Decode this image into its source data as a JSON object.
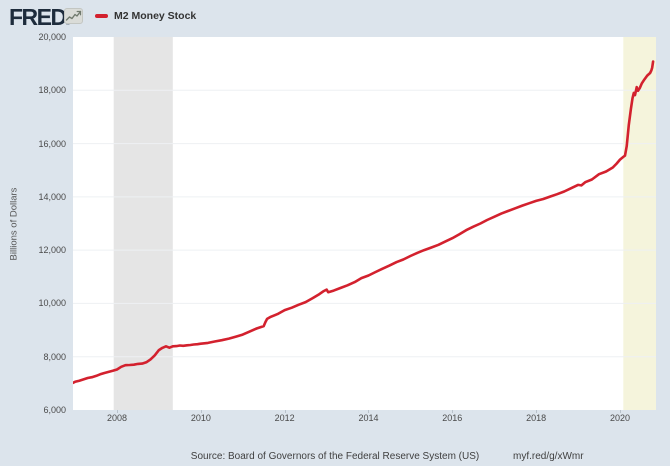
{
  "header": {
    "logo": "FRED",
    "registered": "®"
  },
  "legend": {
    "label": "M2 Money Stock",
    "color": "#d3212e"
  },
  "footer": {
    "source": "Source: Board of Governors of the Federal Reserve System (US)",
    "link": "myf.red/g/xWmr"
  },
  "colors": {
    "background": "#dce4ec",
    "plot_background": "#ffffff",
    "gridline": "#eef0f3",
    "recession_band": "#e5e5e5",
    "covid_band": "#f5f4dc",
    "line": "#d3212e",
    "text": "#4a4a4a",
    "logo": "#1e2c3c"
  },
  "chart_data": {
    "type": "line",
    "title": "M2 Money Stock",
    "xlabel": "",
    "ylabel": "Billions of Dollars",
    "xlim": [
      2006.95,
      2020.86
    ],
    "ylim": [
      6000,
      20000
    ],
    "grid": true,
    "legend_position": "top-left",
    "yticks": {
      "values": [
        6000,
        8000,
        10000,
        12000,
        14000,
        16000,
        18000,
        20000
      ],
      "labels": [
        "6,000",
        "8,000",
        "10,000",
        "12,000",
        "14,000",
        "16,000",
        "18,000",
        "20,000"
      ]
    },
    "xticks": {
      "values": [
        2008,
        2010,
        2012,
        2014,
        2016,
        2018,
        2020
      ],
      "labels": [
        "2008",
        "2010",
        "2012",
        "2014",
        "2016",
        "2018",
        "2020"
      ]
    },
    "bands": [
      {
        "name": "recession-2008-2009",
        "x0": 2007.92,
        "x1": 2009.33,
        "color": "#e5e5e5"
      },
      {
        "name": "recession-2020",
        "x0": 2020.08,
        "x1": 2020.86,
        "color": "#f5f4dc"
      }
    ],
    "series": [
      {
        "name": "M2 Money Stock",
        "color": "#d3212e",
        "units": "Billions of Dollars",
        "x": [
          2006.95,
          2007.0,
          2007.1,
          2007.2,
          2007.3,
          2007.4,
          2007.5,
          2007.6,
          2007.7,
          2007.8,
          2007.9,
          2008.0,
          2008.1,
          2008.2,
          2008.3,
          2008.4,
          2008.5,
          2008.6,
          2008.7,
          2008.8,
          2008.9,
          2009.0,
          2009.08,
          2009.17,
          2009.25,
          2009.33,
          2009.42,
          2009.5,
          2009.58,
          2009.67,
          2009.75,
          2009.83,
          2009.92,
          2010.0,
          2010.17,
          2010.33,
          2010.5,
          2010.67,
          2010.83,
          2011.0,
          2011.17,
          2011.33,
          2011.5,
          2011.54,
          2011.58,
          2011.67,
          2011.75,
          2011.83,
          2011.92,
          2012.0,
          2012.17,
          2012.33,
          2012.5,
          2012.67,
          2012.83,
          2012.92,
          2013.0,
          2013.04,
          2013.17,
          2013.33,
          2013.5,
          2013.67,
          2013.83,
          2014.0,
          2014.17,
          2014.33,
          2014.5,
          2014.67,
          2014.83,
          2015.0,
          2015.17,
          2015.33,
          2015.5,
          2015.67,
          2015.83,
          2016.0,
          2016.17,
          2016.33,
          2016.5,
          2016.67,
          2016.83,
          2017.0,
          2017.17,
          2017.33,
          2017.5,
          2017.67,
          2017.83,
          2018.0,
          2018.17,
          2018.33,
          2018.5,
          2018.67,
          2018.83,
          2019.0,
          2019.08,
          2019.17,
          2019.33,
          2019.5,
          2019.67,
          2019.83,
          2019.92,
          2020.0,
          2020.08,
          2020.12,
          2020.16,
          2020.21,
          2020.26,
          2020.3,
          2020.33,
          2020.36,
          2020.4,
          2020.43,
          2020.47,
          2020.52,
          2020.58,
          2020.65,
          2020.72,
          2020.75,
          2020.77,
          2020.79
        ],
        "y": [
          7020,
          7060,
          7100,
          7150,
          7200,
          7230,
          7280,
          7340,
          7390,
          7430,
          7470,
          7520,
          7620,
          7680,
          7690,
          7700,
          7730,
          7740,
          7790,
          7900,
          8050,
          8250,
          8330,
          8390,
          8340,
          8390,
          8400,
          8420,
          8410,
          8430,
          8440,
          8460,
          8470,
          8490,
          8520,
          8570,
          8620,
          8680,
          8750,
          8830,
          8950,
          9060,
          9150,
          9300,
          9420,
          9500,
          9550,
          9600,
          9680,
          9750,
          9840,
          9950,
          10050,
          10200,
          10350,
          10450,
          10520,
          10420,
          10480,
          10580,
          10680,
          10800,
          10950,
          11050,
          11180,
          11300,
          11420,
          11550,
          11650,
          11780,
          11900,
          12000,
          12100,
          12200,
          12320,
          12450,
          12600,
          12750,
          12880,
          13000,
          13130,
          13250,
          13370,
          13470,
          13570,
          13670,
          13760,
          13850,
          13920,
          14010,
          14100,
          14200,
          14320,
          14450,
          14430,
          14550,
          14650,
          14850,
          14950,
          15100,
          15250,
          15400,
          15500,
          15550,
          15900,
          16700,
          17300,
          17700,
          17900,
          17820,
          18120,
          17980,
          18080,
          18250,
          18400,
          18550,
          18650,
          18750,
          18850,
          19080
        ]
      }
    ]
  }
}
